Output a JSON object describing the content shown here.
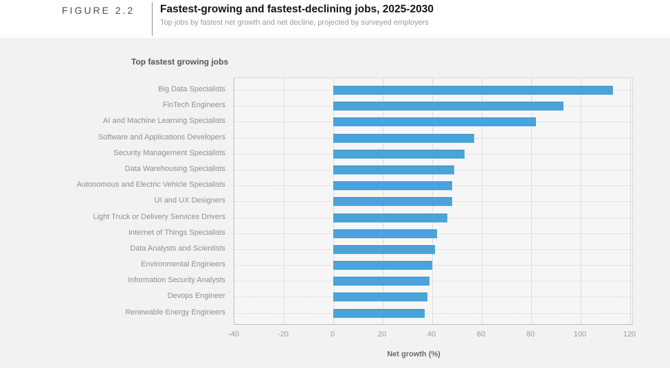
{
  "header": {
    "figure_label": "FIGURE 2.2",
    "title": "Fastest-growing and fastest-declining jobs, 2025-2030",
    "subtitle": "Top jobs by fastest net growth and net decline, projected by surveyed employers"
  },
  "section": {
    "title": "Top fastest growing jobs"
  },
  "colors": {
    "bar": "#4aa4d9",
    "bar_edge": "#3e93c7",
    "page_bg": "#f2f2f3",
    "header_bg": "#ffffff",
    "plot_bg": "#f6f6f7",
    "gridline": "#dcdcdd",
    "label_text": "#8f8f8f",
    "tick_text": "#9b9b9b"
  },
  "chart_data": {
    "type": "bar",
    "orientation": "horizontal",
    "title": "Top fastest growing jobs",
    "xlabel": "Net growth (%)",
    "categories": [
      "Big Data Specialists",
      "FinTech Engineers",
      "AI and Machine Learning Specialists",
      "Software and Applications Developers",
      "Security Management Specialists",
      "Data Warehousing Specialists",
      "Autonomous and Electric Vehicle Specialists",
      "UI and UX Designers",
      "Light Truck or Delivery Services Drivers",
      "Internet of Things Specialists",
      "Data Analysts and Scientists",
      "Environmental Engineers",
      "Information Security Analysts",
      "Devops Engineer",
      "Renewable Energy Engineers"
    ],
    "values": [
      113,
      93,
      82,
      57,
      53,
      49,
      48,
      48,
      46,
      42,
      41,
      40,
      39,
      38,
      37
    ],
    "xlim": [
      -40,
      121.4
    ],
    "xticks": [
      -40,
      -20,
      0,
      20,
      40,
      60,
      80,
      100,
      120
    ],
    "zero_position": 0,
    "grid": "solid vertical gridlines at ticks, dotted horizontal row guides",
    "legend": "none"
  }
}
